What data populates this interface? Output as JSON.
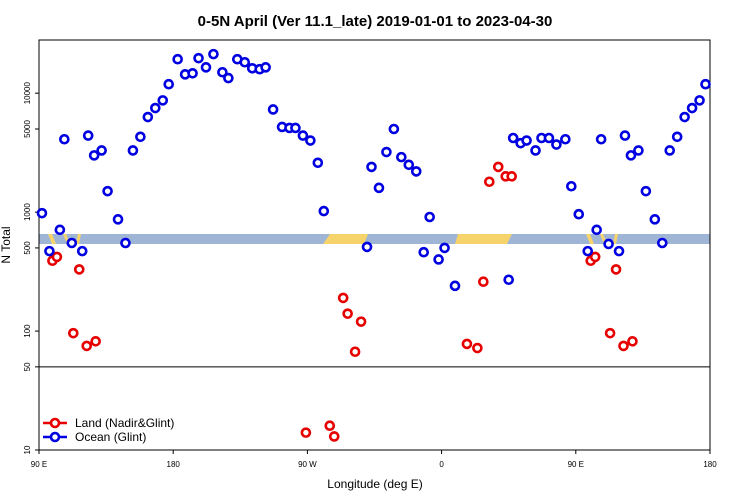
{
  "chart_data": {
    "type": "scatter",
    "title": "0-5N April (Ver 11.1_late)   2019-01-01 to 2023-04-30",
    "x_label": "Longitude (deg E)",
    "y_label": "N Total",
    "log_y": true,
    "xlim": [
      90,
      540
    ],
    "ylim": [
      10,
      28000
    ],
    "xticks": [
      {
        "value": 90,
        "label": "90 E"
      },
      180,
      {
        "value": 270,
        "label": "90 W"
      },
      {
        "value": 360,
        "label": "0"
      },
      {
        "value": 450,
        "label": "90 E"
      },
      {
        "value": 540,
        "label": "180"
      }
    ],
    "yticks": [
      10,
      50,
      100,
      500,
      1000,
      5000,
      10000
    ],
    "hlines": [
      50
    ],
    "legend": "bottom-left",
    "series": [
      {
        "name": "Land (Nadir&Glint)",
        "color": "#e60000",
        "x": [
          99,
          102,
          113,
          117,
          122,
          128,
          269,
          285,
          288,
          294,
          297,
          302,
          306,
          377,
          384,
          388,
          392,
          398,
          403,
          407,
          460,
          463,
          473,
          477,
          482,
          488
        ],
        "values": [
          390,
          420,
          96,
          330,
          75,
          82,
          14,
          16,
          13,
          190,
          140,
          67,
          120,
          78,
          72,
          260,
          1800,
          2400,
          2000,
          2000,
          390,
          420,
          96,
          330,
          75,
          82
        ]
      },
      {
        "name": "Ocean (Glint)",
        "color": "#0000e0",
        "x": [
          92,
          97,
          104,
          107,
          112,
          119,
          123,
          127,
          132,
          136,
          143,
          148,
          153,
          158,
          163,
          168,
          173,
          177,
          183,
          188,
          193,
          197,
          202,
          207,
          213,
          217,
          223,
          228,
          233,
          238,
          242,
          247,
          253,
          258,
          262,
          267,
          272,
          277,
          281,
          310,
          313,
          318,
          323,
          328,
          333,
          338,
          343,
          348,
          352,
          358,
          362,
          369,
          405,
          408,
          413,
          417,
          423,
          427,
          432,
          437,
          443,
          447,
          452,
          458,
          464,
          467,
          472,
          479,
          483,
          487,
          492,
          497,
          503,
          508,
          513,
          518,
          523,
          528,
          533,
          537
        ],
        "values": [
          980,
          470,
          710,
          4100,
          550,
          470,
          4400,
          3000,
          3300,
          1500,
          870,
          550,
          3300,
          4300,
          6300,
          7500,
          8700,
          11900,
          19300,
          14400,
          14700,
          19700,
          16500,
          21300,
          15000,
          13400,
          19300,
          18200,
          16200,
          15900,
          16500,
          7300,
          5200,
          5100,
          5100,
          4400,
          4000,
          2600,
          1020,
          510,
          2400,
          1600,
          3200,
          5000,
          2900,
          2500,
          2200,
          460,
          910,
          400,
          500,
          240,
          270,
          4200,
          3800,
          4000,
          3300,
          4200,
          4200,
          3700,
          4100,
          1650,
          960,
          470,
          710,
          4100,
          540,
          470,
          4400,
          3000,
          3300,
          1500,
          870,
          550,
          3300,
          4300,
          6300,
          7500,
          8700,
          11900
        ]
      }
    ]
  }
}
